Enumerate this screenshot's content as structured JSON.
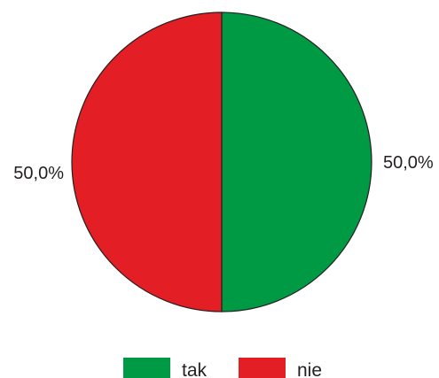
{
  "chart_data": {
    "type": "pie",
    "slices": [
      {
        "label": "tak",
        "value": 50.0,
        "value_label": "50,0%",
        "color": "#009a44"
      },
      {
        "label": "nie",
        "value": 50.0,
        "value_label": "50,0%",
        "color": "#e31e24"
      }
    ],
    "legend_position": "bottom",
    "start_angle": "12 o'clock",
    "direction": "clockwise",
    "outline_color": "#231f20"
  }
}
